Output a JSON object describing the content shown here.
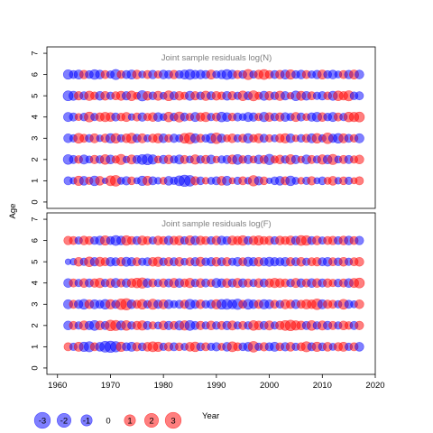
{
  "chart_data": {
    "type": "scatter",
    "subtype": "bubble-residuals",
    "xlabel": "Year",
    "ylabel": "Age",
    "xlim": [
      1958,
      2020
    ],
    "ylim": [
      -0.3,
      7.3
    ],
    "x_ticks": [
      1960,
      1970,
      1980,
      1990,
      2000,
      2010,
      2020
    ],
    "y_ticks": [
      0,
      1,
      2,
      3,
      4,
      5,
      6,
      7
    ],
    "years": [
      1962,
      1963,
      1964,
      1965,
      1966,
      1967,
      1968,
      1969,
      1970,
      1971,
      1972,
      1973,
      1974,
      1975,
      1976,
      1977,
      1978,
      1979,
      1980,
      1981,
      1982,
      1983,
      1984,
      1985,
      1986,
      1987,
      1988,
      1989,
      1990,
      1991,
      1992,
      1993,
      1994,
      1995,
      1996,
      1997,
      1998,
      1999,
      2000,
      2001,
      2002,
      2003,
      2004,
      2005,
      2006,
      2007,
      2008,
      2009,
      2010,
      2011,
      2012,
      2013,
      2014,
      2015,
      2016,
      2017
    ],
    "ages": [
      1,
      2,
      3,
      4,
      5,
      6
    ],
    "colors": {
      "positive": "#ff0000",
      "negative": "#0000ff",
      "alpha": 0.5
    },
    "legend": [
      {
        "label": "-3",
        "value": -3
      },
      {
        "label": "-2",
        "value": -2
      },
      {
        "label": "-1",
        "value": -1
      },
      {
        "label": "0",
        "value": 0
      },
      {
        "label": "1",
        "value": 1
      },
      {
        "label": "2",
        "value": 2
      },
      {
        "label": "3",
        "value": 3
      }
    ],
    "panels": [
      {
        "title": "Joint sample residuals log(N)",
        "residuals_by_age": {
          "1": [
            -1.0,
            -0.6,
            1.4,
            -1.2,
            0.8,
            -1.5,
            1.2,
            -0.4,
            1.6,
            1.9,
            -0.7,
            -1.1,
            0.9,
            -0.5,
            -1.4,
            1.3,
            -1.0,
            -0.6,
            0.7,
            -1.2,
            -0.8,
            -1.6,
            -2.2,
            -1.9,
            1.1,
            -0.9,
            0.6,
            -0.7,
            -1.0,
            1.2,
            -1.3,
            0.5,
            -0.8,
            1.0,
            -0.6,
            1.8,
            -1.1,
            0.9,
            -0.4,
            -0.9,
            -1.2,
            1.0,
            -1.5,
            -0.7,
            0.6,
            -0.8,
            1.1,
            -0.5,
            -0.9,
            0.7,
            1.2,
            -0.6,
            0.9,
            -0.8,
            0.5,
            1.0
          ],
          "2": [
            -1.5,
            -1.0,
            0.9,
            -1.3,
            -0.7,
            1.1,
            -0.9,
            1.5,
            -1.2,
            0.8,
            1.7,
            -0.6,
            1.3,
            -1.0,
            -1.6,
            -1.9,
            -1.4,
            0.7,
            -1.1,
            1.2,
            -0.8,
            -1.3,
            1.0,
            -0.7,
            1.4,
            -0.9,
            1.1,
            -1.2,
            0.6,
            -0.8,
            -1.0,
            1.3,
            -1.6,
            0.9,
            -1.1,
            0.7,
            -1.2,
            1.0,
            -1.8,
            0.8,
            1.2,
            -0.9,
            1.5,
            -1.1,
            0.6,
            -1.3,
            1.0,
            -0.8,
            1.4,
            -1.2,
            1.7,
            -0.7,
            1.0,
            -1.0,
            0.8,
            1.2
          ],
          "3": [
            -1.2,
            -0.8,
            1.6,
            1.0,
            -0.9,
            1.3,
            -0.6,
            1.1,
            -1.4,
            1.5,
            -0.8,
            1.2,
            1.7,
            -1.0,
            1.3,
            -0.7,
            1.1,
            1.4,
            -1.2,
            0.9,
            -1.1,
            -0.8,
            1.6,
            2.0,
            -1.3,
            1.0,
            -0.9,
            -1.5,
            1.9,
            -1.1,
            0.7,
            1.2,
            -0.8,
            1.0,
            -1.4,
            0.9,
            1.3,
            -1.0,
            0.8,
            -0.7,
            1.1,
            1.4,
            -1.2,
            0.6,
            -0.9,
            1.0,
            -1.3,
            1.5,
            -0.8,
            1.9,
            -1.1,
            -1.5,
            1.3,
            -1.0,
            0.9,
            -1.3
          ],
          "4": [
            -1.3,
            -1.0,
            0.7,
            -0.9,
            1.6,
            -0.8,
            1.1,
            1.4,
            1.2,
            -1.0,
            0.9,
            1.3,
            -0.6,
            1.0,
            -1.1,
            0.8,
            1.2,
            -1.2,
            -0.7,
            1.5,
            -0.9,
            1.7,
            -1.0,
            0.8,
            -1.3,
            1.1,
            1.4,
            -0.8,
            1.0,
            -1.5,
            -1.2,
            0.9,
            -1.0,
            -0.7,
            -1.3,
            -1.1,
            0.8,
            -1.4,
            1.2,
            -0.9,
            1.1,
            -1.2,
            -0.8,
            1.3,
            -1.0,
            0.7,
            -1.1,
            -1.4,
            1.2,
            -0.9,
            -1.3,
            1.0,
            -0.8,
            1.5,
            1.4,
            1.6
          ],
          "5": [
            -1.6,
            -1.3,
            1.1,
            -1.0,
            1.4,
            0.9,
            -1.2,
            1.2,
            -0.8,
            1.0,
            1.3,
            -1.1,
            1.5,
            0.7,
            -1.8,
            1.2,
            -0.9,
            1.3,
            -0.7,
            1.6,
            -1.0,
            1.2,
            0.8,
            -1.3,
            1.1,
            -0.9,
            1.4,
            -1.0,
            1.2,
            0.9,
            -1.2,
            1.1,
            -0.8,
            1.5,
            -1.0,
            1.7,
            0.8,
            -1.3,
            1.2,
            -0.9,
            1.4,
            -1.1,
            0.6,
            -1.5,
            1.3,
            -1.2,
            1.0,
            -0.8,
            -1.1,
            0.9,
            -1.3,
            1.5,
            1.1,
            1.7,
            -0.9,
            -1.0
          ],
          "6": [
            -1.4,
            -1.0,
            -1.3,
            1.1,
            -0.9,
            -1.5,
            -1.2,
            1.0,
            -0.8,
            -1.7,
            0.9,
            -1.0,
            -1.3,
            1.2,
            -0.7,
            1.0,
            -1.1,
            0.8,
            -1.2,
            -1.0,
            1.1,
            -0.9,
            -1.3,
            -1.6,
            -1.1,
            -1.2,
            -1.0,
            1.3,
            -0.8,
            -1.1,
            -1.6,
            -1.2,
            1.0,
            -0.9,
            1.7,
            -0.8,
            1.2,
            1.6,
            1.0,
            -1.0,
            1.1,
            -1.3,
            1.4,
            -0.9,
            -1.2,
            1.0,
            -0.8,
            -1.1,
            1.3,
            -0.9,
            -1.2,
            -0.7,
            1.0,
            -1.1,
            1.3,
            -1.2
          ]
        }
      },
      {
        "title": "Joint sample residuals log(F)",
        "residuals_by_age": {
          "1": [
            1.0,
            -0.8,
            1.3,
            -1.4,
            -1.7,
            1.0,
            -1.2,
            -2.0,
            -2.2,
            -1.8,
            1.4,
            -1.0,
            -1.3,
            1.1,
            -0.9,
            1.2,
            1.6,
            1.4,
            -0.8,
            1.1,
            -1.0,
            0.9,
            -0.7,
            1.2,
            1.5,
            -0.9,
            1.0,
            -0.8,
            -1.1,
            0.7,
            -1.2,
            1.6,
            1.0,
            -0.9,
            -1.2,
            1.9,
            -0.8,
            1.1,
            -1.0,
            -1.3,
            0.9,
            -1.1,
            1.2,
            -0.8,
            1.0,
            1.7,
            -1.0,
            1.4,
            -0.9,
            1.2,
            -0.7,
            1.1,
            1.3,
            -0.8,
            1.0,
            -1.2
          ],
          "2": [
            -1.2,
            1.0,
            -0.8,
            1.3,
            -1.1,
            -1.6,
            1.2,
            -1.0,
            1.9,
            1.7,
            -1.3,
            1.5,
            -0.9,
            1.1,
            1.4,
            -1.0,
            0.8,
            -0.7,
            1.2,
            -1.1,
            1.0,
            -1.3,
            1.4,
            -1.6,
            -1.0,
            1.1,
            -0.8,
            1.2,
            -0.9,
            1.0,
            -1.1,
            1.3,
            -0.8,
            1.0,
            -0.9,
            1.5,
            1.2,
            -1.0,
            1.3,
            -0.8,
            1.1,
            1.6,
            1.9,
            1.4,
            1.2,
            -1.0,
            1.5,
            -0.9,
            1.3,
            -1.1,
            1.0,
            -0.8,
            1.2,
            0.9,
            -1.0,
            1.1
          ],
          "3": [
            -1.3,
            1.0,
            -1.1,
            -1.6,
            1.2,
            -1.3,
            -1.0,
            -1.5,
            1.4,
            -1.0,
            1.9,
            2.2,
            -1.2,
            1.0,
            1.5,
            -0.9,
            1.7,
            -1.1,
            1.3,
            -1.2,
            -0.8,
            -1.0,
            1.1,
            -1.6,
            -1.1,
            1.2,
            -0.9,
            -1.1,
            1.4,
            -1.5,
            -1.7,
            -1.3,
            -1.8,
            1.0,
            -1.6,
            -1.2,
            1.1,
            -1.4,
            -1.2,
            1.0,
            -0.9,
            1.3,
            1.1,
            -1.2,
            1.0,
            1.4,
            1.2,
            1.9,
            -1.3,
            1.1,
            1.0,
            -0.8,
            1.6,
            -1.0,
            -0.7,
            1.2
          ],
          "4": [
            -1.2,
            1.0,
            -0.8,
            1.2,
            -1.0,
            1.1,
            1.4,
            -0.9,
            1.2,
            -1.3,
            1.0,
            -1.1,
            1.2,
            1.5,
            1.8,
            -1.2,
            1.0,
            -0.8,
            1.1,
            -1.0,
            1.3,
            -1.2,
            1.0,
            1.4,
            -0.9,
            1.2,
            -1.0,
            0.8,
            -1.3,
            -1.1,
            1.2,
            -1.0,
            1.3,
            -1.1,
            1.0,
            -0.8,
            1.2,
            -1.0,
            1.1,
            1.4,
            1.2,
            1.0,
            -0.9,
            1.3,
            -1.1,
            1.0,
            -1.2,
            1.2,
            -1.0,
            1.1,
            0.8,
            -0.9,
            1.0,
            -1.2,
            1.3,
            1.6
          ],
          "5": [
            -0.4,
            -0.6,
            1.2,
            -0.8,
            1.5,
            -1.1,
            1.3,
            1.0,
            -1.2,
            -1.0,
            1.1,
            -1.3,
            -1.1,
            1.0,
            -0.8,
            -1.0,
            1.2,
            1.4,
            -0.9,
            1.1,
            -1.0,
            1.2,
            -0.7,
            1.0,
            -1.1,
            1.3,
            -0.9,
            -1.1,
            1.2,
            -1.0,
            1.1,
            -0.8,
            -1.2,
            1.0,
            -1.3,
            -1.1,
            1.2,
            -1.0,
            -1.3,
            -1.1,
            -1.0,
            -1.2,
            1.1,
            -1.0,
            1.2,
            -0.8,
            1.0,
            1.1,
            -1.0,
            -1.2,
            1.0,
            -0.9,
            1.2,
            -0.8,
            1.0,
            1.2
          ],
          "6": [
            1.1,
            1.0,
            -0.8,
            1.2,
            1.0,
            -0.9,
            -1.2,
            1.4,
            -1.0,
            -1.6,
            -1.2,
            1.5,
            1.0,
            -1.0,
            1.3,
            1.0,
            -0.8,
            1.2,
            1.0,
            -1.2,
            1.1,
            1.3,
            -0.9,
            1.4,
            -1.2,
            1.2,
            1.0,
            -0.9,
            1.2,
            -1.2,
            -1.0,
            1.3,
            1.1,
            1.5,
            -1.0,
            1.2,
            1.4,
            1.0,
            1.1,
            -0.9,
            1.2,
            1.0,
            1.3,
            -1.1,
            1.6,
            1.5,
            -1.0,
            1.2,
            -0.8,
            1.0,
            1.1,
            -0.9,
            1.2,
            -1.2,
            1.0,
            -1.1
          ]
        }
      }
    ]
  }
}
